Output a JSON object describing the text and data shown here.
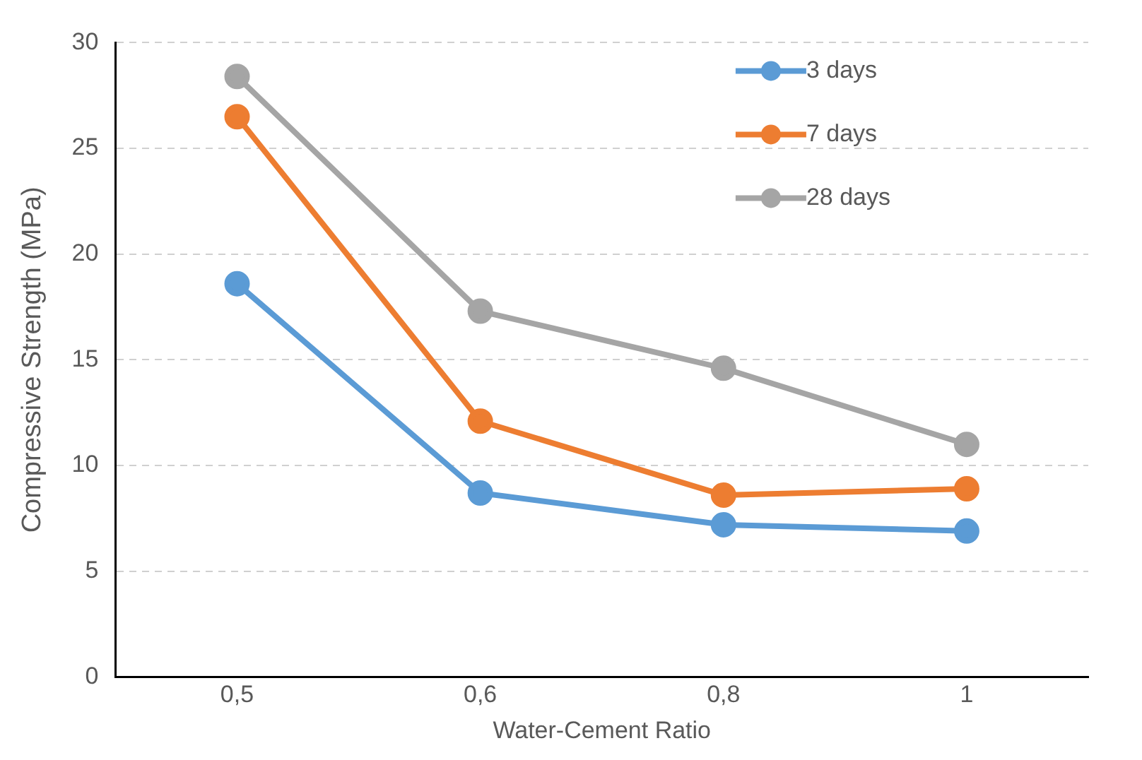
{
  "chart_data": {
    "type": "line",
    "xlabel": "Water-Cement Ratio",
    "ylabel": "Compressive Strength (MPa)",
    "categories": [
      "0,5",
      "0,6",
      "0,8",
      "1"
    ],
    "series": [
      {
        "name": "3 days",
        "color": "#5b9bd5",
        "values": [
          18.6,
          8.7,
          7.2,
          6.9
        ]
      },
      {
        "name": "7 days",
        "color": "#ed7d31",
        "values": [
          26.5,
          12.1,
          8.6,
          8.9
        ]
      },
      {
        "name": "28 days",
        "color": "#a5a5a5",
        "values": [
          28.4,
          17.3,
          14.6,
          11.0
        ]
      }
    ],
    "ylim": [
      0,
      30
    ],
    "yticks": [
      0,
      5,
      10,
      15,
      20,
      25,
      30
    ],
    "grid": "y",
    "legend": "top right",
    "marker": "circle",
    "line_style": "solid"
  }
}
